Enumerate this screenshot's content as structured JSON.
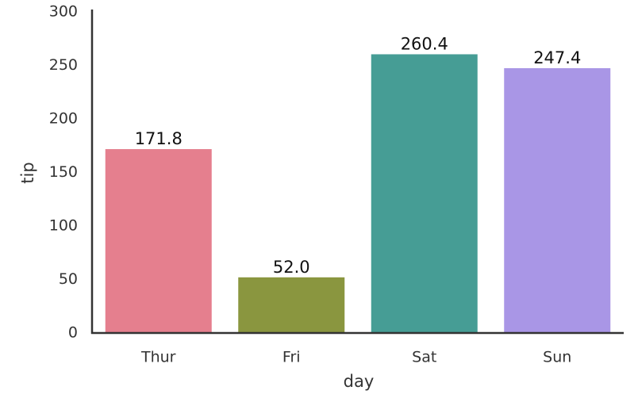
{
  "chart_data": {
    "type": "bar",
    "xlabel": "day",
    "ylabel": "tip",
    "categories": [
      "Thur",
      "Fri",
      "Sat",
      "Sun"
    ],
    "values": [
      171.8,
      52.0,
      260.4,
      247.4
    ],
    "value_labels": [
      "171.8",
      "52.0",
      "260.4",
      "247.4"
    ],
    "colors": [
      "#e57f8e",
      "#8a963f",
      "#469d95",
      "#a996e6"
    ],
    "ylim": [
      0,
      300
    ],
    "yticks": [
      0,
      50,
      100,
      150,
      200,
      250,
      300
    ],
    "grid": false
  }
}
